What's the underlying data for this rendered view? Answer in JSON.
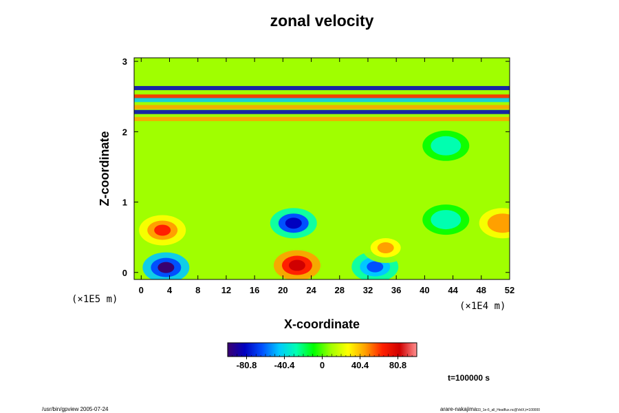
{
  "chart_data": {
    "type": "heatmap",
    "title": "zonal velocity",
    "xlabel": "X-coordinate",
    "ylabel": "Z-coordinate",
    "x_scale_note": "(×1E4 m)",
    "y_scale_note": "(×1E5 m)",
    "xlim": [
      -1,
      52
    ],
    "ylim": [
      -0.1,
      3.05
    ],
    "x_ticks": [
      "0",
      "4",
      "8",
      "12",
      "16",
      "20",
      "24",
      "28",
      "32",
      "36",
      "40",
      "44",
      "48",
      "52"
    ],
    "y_ticks": [
      "0",
      "1",
      "2",
      "3"
    ],
    "colorbar": {
      "range": [
        -101,
        101
      ],
      "ticks": [
        "-80.8",
        "-40.4",
        "0",
        "40.4",
        "80.8"
      ],
      "tick_values": [
        -80.8,
        -40.4,
        0,
        40.4,
        80.8
      ],
      "colors": [
        "#3a0070",
        "#0000c0",
        "#0050ff",
        "#00c8ff",
        "#00ffb0",
        "#00ff00",
        "#a0ff00",
        "#ffff00",
        "#ffa000",
        "#ff2000",
        "#d00000",
        "#ff9090"
      ]
    },
    "time_label": "t=100000 s",
    "features": [
      {
        "x": 3,
        "z": 0.6,
        "value": 70
      },
      {
        "x": 22,
        "z": 0.1,
        "value": 85
      },
      {
        "x": 21.5,
        "z": 0.7,
        "value": -75
      },
      {
        "x": 33,
        "z": 0.08,
        "value": -60
      },
      {
        "x": 43,
        "z": 0.75,
        "value": -35
      },
      {
        "x": 51,
        "z": 0.7,
        "value": 55
      },
      {
        "x": 3.5,
        "z": 0.07,
        "value": -95
      },
      {
        "x": 34.5,
        "z": 0.35,
        "value": 40
      },
      {
        "x": 43,
        "z": 1.8,
        "value": -30
      }
    ],
    "layers": [
      {
        "z": 2.62,
        "value": -80
      },
      {
        "z": 2.5,
        "value": 60
      },
      {
        "z": 2.45,
        "value": -50
      },
      {
        "z": 2.35,
        "value": 55
      },
      {
        "z": 2.28,
        "value": -75
      },
      {
        "z": 2.18,
        "value": 45
      }
    ]
  },
  "footer": {
    "left": "/usr/bin/gpview 2005-07-24",
    "right_main": "arare-nakajima",
    "right_sub": "33_1e-6_all_Heatflux.nc@VelX,t=100000"
  }
}
